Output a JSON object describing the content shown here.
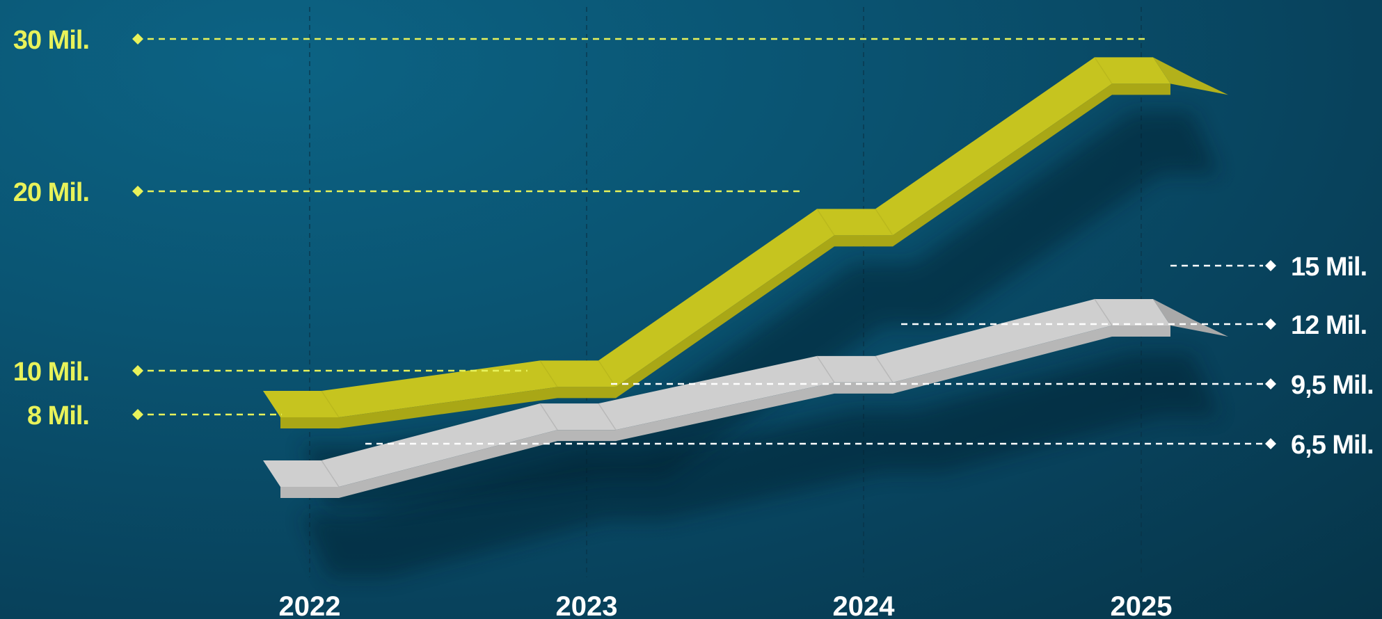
{
  "chart_data": {
    "type": "line",
    "title": "",
    "xlabel": "",
    "ylabel": "",
    "categories": [
      "2022",
      "2023",
      "2024",
      "2025"
    ],
    "series": [
      {
        "values": [
          8,
          10,
          20,
          30
        ],
        "color": "#c9c823",
        "style": "3d-ribbon"
      },
      {
        "values": [
          6.5,
          9.5,
          12,
          15
        ],
        "color": "#d9d9d9",
        "style": "3d-ribbon"
      }
    ],
    "left_labels": [
      "30 Mil.",
      "20 Mil.",
      "10 Mil.",
      "8 Mil."
    ],
    "right_labels": [
      "15 Mil.",
      "12 Mil.",
      "9,5 Mil.",
      "6,5 Mil."
    ],
    "grid": false,
    "legend": "none",
    "colors": {
      "primary_series": "#c9c823",
      "primary_label": "#e8f25a",
      "secondary_series": "#d9d9d9",
      "secondary_label": "#ffffff",
      "year_label": "#ffffff",
      "background": "#0a5472"
    }
  }
}
